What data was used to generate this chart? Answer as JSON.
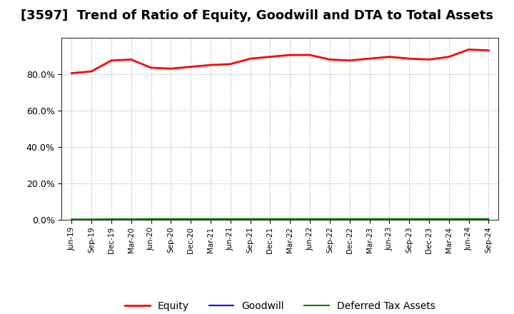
{
  "title": "[3597]  Trend of Ratio of Equity, Goodwill and DTA to Total Assets",
  "x_labels": [
    "Jun-19",
    "Sep-19",
    "Dec-19",
    "Mar-20",
    "Jun-20",
    "Sep-20",
    "Dec-20",
    "Mar-21",
    "Jun-21",
    "Sep-21",
    "Dec-21",
    "Mar-22",
    "Jun-22",
    "Sep-22",
    "Dec-22",
    "Mar-23",
    "Jun-23",
    "Sep-23",
    "Dec-23",
    "Mar-24",
    "Jun-24",
    "Sep-24"
  ],
  "equity": [
    80.5,
    81.5,
    87.5,
    88.0,
    83.5,
    83.0,
    84.0,
    85.0,
    85.5,
    88.5,
    89.5,
    90.5,
    90.5,
    88.0,
    87.5,
    88.5,
    89.5,
    88.5,
    88.0,
    89.5,
    93.5,
    93.0
  ],
  "goodwill": [
    0.0,
    0.0,
    0.0,
    0.0,
    0.0,
    0.0,
    0.0,
    0.0,
    0.0,
    0.0,
    0.0,
    0.0,
    0.0,
    0.0,
    0.0,
    0.0,
    0.0,
    0.0,
    0.0,
    0.0,
    0.0,
    0.0
  ],
  "dta": [
    0.3,
    0.3,
    0.4,
    0.4,
    0.5,
    0.5,
    0.5,
    0.5,
    0.5,
    0.5,
    0.5,
    0.5,
    0.5,
    0.5,
    0.5,
    0.5,
    0.5,
    0.5,
    0.5,
    0.5,
    0.5,
    0.5
  ],
  "equity_color": "#ff0000",
  "goodwill_color": "#0000ff",
  "dta_color": "#008000",
  "ylim": [
    0,
    100
  ],
  "yticks": [
    0,
    20,
    40,
    60,
    80
  ],
  "ytick_labels": [
    "0.0%",
    "20.0%",
    "40.0%",
    "60.0%",
    "80.0%"
  ],
  "background_color": "#ffffff",
  "grid_color": "#aaaaaa",
  "title_fontsize": 13,
  "legend_labels": [
    "Equity",
    "Goodwill",
    "Deferred Tax Assets"
  ]
}
